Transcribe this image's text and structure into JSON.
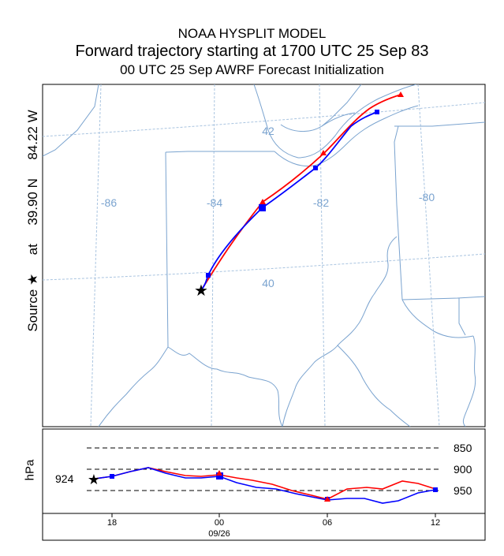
{
  "titles": {
    "line1": "NOAA HYSPLIT MODEL",
    "line2": "Forward trajectory starting at 1700 UTC 25 Sep 83",
    "line3": "00 UTC 25 Sep    AWRF  Forecast Initialization"
  },
  "source_label": {
    "source_text": "Source",
    "at_text": "at",
    "lat_text": "39.90 N",
    "lon_text": "84.22 W"
  },
  "map": {
    "longitude_labels": [
      "-86",
      "-84",
      "-82",
      "-80"
    ],
    "latitude_labels": [
      "42",
      "40"
    ],
    "colors": {
      "boundaries": "#7aa3cf",
      "graticule": "#a9c4e0",
      "red_trajectory": "#ff0000",
      "blue_trajectory": "#0000ff"
    }
  },
  "vertical": {
    "axis_label": "hPa",
    "start_level": "924",
    "pressure_levels": [
      "850",
      "900",
      "950"
    ],
    "time_ticks": [
      "18",
      "00",
      "06",
      "12"
    ],
    "date_label": "09/26"
  }
}
